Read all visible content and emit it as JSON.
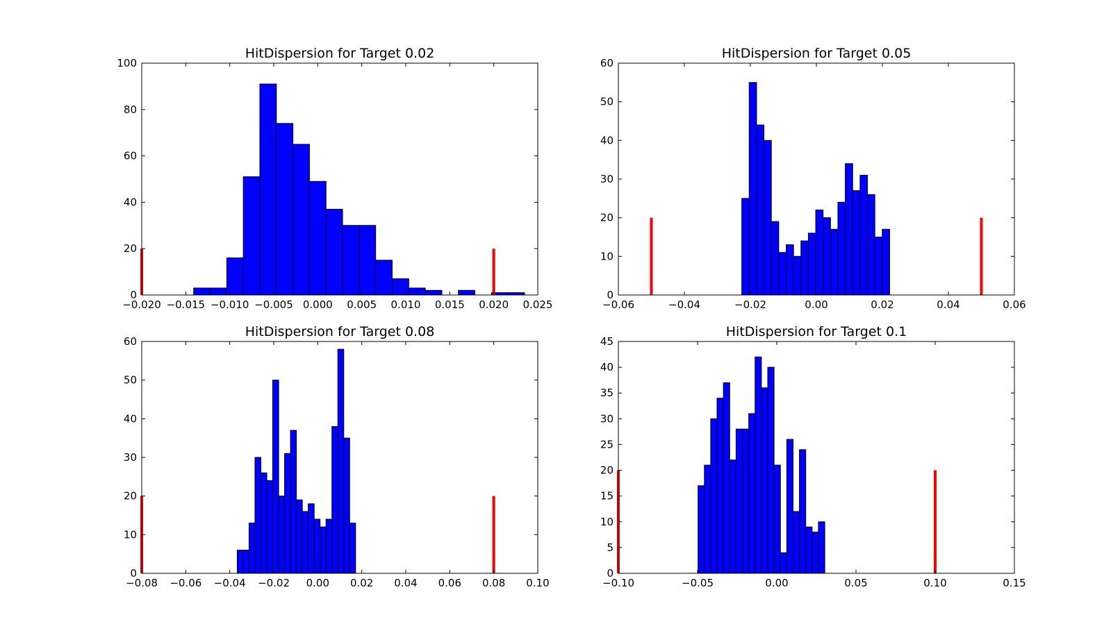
{
  "colors": {
    "bar_fill": "#0000ff",
    "bar_edge": "#000000",
    "target_line": "#ff0000",
    "axes": "#000000",
    "background": "#ffffff"
  },
  "chart_data": [
    {
      "type": "bar",
      "title": "HitDispersion for Target 0.02",
      "xlim": [
        -0.02,
        0.025
      ],
      "ylim": [
        0,
        100
      ],
      "xticks": [
        "−0.020",
        "−0.015",
        "−0.010",
        "−0.005",
        "0.000",
        "0.005",
        "0.010",
        "0.015",
        "0.020",
        "0.025"
      ],
      "xtick_values": [
        -0.02,
        -0.015,
        -0.01,
        -0.005,
        0.0,
        0.005,
        0.01,
        0.015,
        0.02,
        0.025
      ],
      "yticks": [
        "0",
        "20",
        "40",
        "60",
        "80",
        "100"
      ],
      "ytick_values": [
        0,
        20,
        40,
        60,
        80,
        100
      ],
      "grid": false,
      "bin_start": -0.0141,
      "bin_width": 0.00188,
      "counts": [
        3,
        3,
        16,
        51,
        91,
        74,
        65,
        49,
        37,
        30,
        30,
        15,
        7,
        3,
        2,
        0,
        2,
        0,
        1,
        1
      ],
      "target_lines": [
        {
          "x": -0.02,
          "height": 20
        },
        {
          "x": 0.02,
          "height": 20
        }
      ]
    },
    {
      "type": "bar",
      "title": "HitDispersion for Target 0.05",
      "xlim": [
        -0.06,
        0.06
      ],
      "ylim": [
        0,
        60
      ],
      "xticks": [
        "−0.06",
        "−0.04",
        "−0.02",
        "0.00",
        "0.02",
        "0.04",
        "0.06"
      ],
      "xtick_values": [
        -0.06,
        -0.04,
        -0.02,
        0.0,
        0.02,
        0.04,
        0.06
      ],
      "yticks": [
        "0",
        "10",
        "20",
        "30",
        "40",
        "50",
        "60"
      ],
      "ytick_values": [
        0,
        10,
        20,
        30,
        40,
        50,
        60
      ],
      "grid": false,
      "bin_start": -0.0226,
      "bin_width": 0.00224,
      "counts": [
        25,
        55,
        44,
        40,
        19,
        11,
        13,
        10,
        14,
        16,
        22,
        20,
        17,
        24,
        34,
        27,
        31,
        26,
        15,
        17
      ],
      "target_lines": [
        {
          "x": -0.05,
          "height": 20
        },
        {
          "x": 0.05,
          "height": 20
        }
      ]
    },
    {
      "type": "bar",
      "title": "HitDispersion for Target 0.08",
      "xlim": [
        -0.08,
        0.1
      ],
      "ylim": [
        0,
        60
      ],
      "xticks": [
        "−0.08",
        "−0.06",
        "−0.04",
        "−0.02",
        "0.00",
        "0.02",
        "0.04",
        "0.06",
        "0.08",
        "0.10"
      ],
      "xtick_values": [
        -0.08,
        -0.06,
        -0.04,
        -0.02,
        0.0,
        0.02,
        0.04,
        0.06,
        0.08,
        0.1
      ],
      "yticks": [
        "0",
        "10",
        "20",
        "30",
        "40",
        "50",
        "60"
      ],
      "ytick_values": [
        0,
        10,
        20,
        30,
        40,
        50,
        60
      ],
      "grid": false,
      "bin_start": -0.0366,
      "bin_width": 0.00269,
      "counts": [
        6,
        6,
        13,
        30,
        26,
        24,
        50,
        20,
        31,
        37,
        19,
        16,
        18,
        14,
        12,
        14,
        38,
        58,
        35,
        13
      ],
      "target_lines": [
        {
          "x": -0.08,
          "height": 20
        },
        {
          "x": 0.08,
          "height": 20
        }
      ]
    },
    {
      "type": "bar",
      "title": "HitDispersion for Target 0.1",
      "xlim": [
        -0.1,
        0.15
      ],
      "ylim": [
        0,
        45
      ],
      "xticks": [
        "−0.10",
        "−0.05",
        "0.00",
        "0.05",
        "0.10",
        "0.15"
      ],
      "xtick_values": [
        -0.1,
        -0.05,
        0.0,
        0.05,
        0.1,
        0.15
      ],
      "yticks": [
        "0",
        "5",
        "10",
        "15",
        "20",
        "25",
        "30",
        "35",
        "40",
        "45"
      ],
      "ytick_values": [
        0,
        5,
        10,
        15,
        20,
        25,
        30,
        35,
        40,
        45
      ],
      "grid": false,
      "bin_start": -0.0497,
      "bin_width": 0.004,
      "counts": [
        17,
        21,
        30,
        34,
        37,
        22,
        28,
        28,
        31,
        42,
        36,
        40,
        21,
        4,
        26,
        12,
        24,
        9,
        8,
        10
      ],
      "target_lines": [
        {
          "x": -0.1,
          "height": 20
        },
        {
          "x": 0.1,
          "height": 20
        }
      ]
    }
  ]
}
